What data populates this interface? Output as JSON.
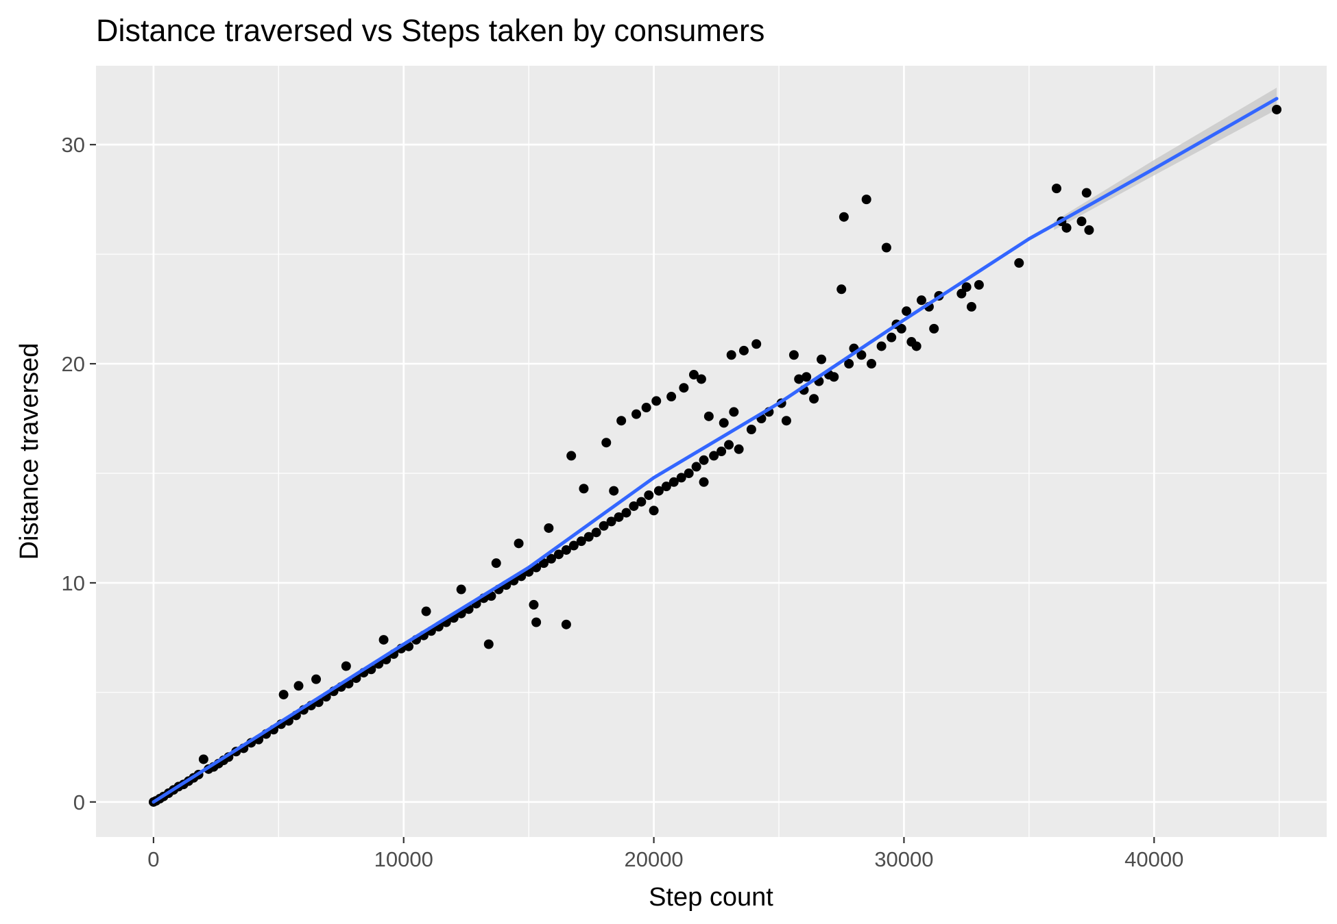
{
  "chart_data": {
    "type": "scatter",
    "title": "Distance traversed vs Steps taken by consumers",
    "xlabel": "Step count",
    "ylabel": "Distance traversed",
    "xlim": [
      -2300,
      46900
    ],
    "ylim": [
      -1.6,
      33.6
    ],
    "x_ticks": [
      0,
      10000,
      20000,
      30000,
      40000
    ],
    "x_tick_labels": [
      "0",
      "10000",
      "20000",
      "30000",
      "40000"
    ],
    "x_minor_ticks": [
      5000,
      15000,
      25000,
      35000,
      45000
    ],
    "y_ticks": [
      0,
      10,
      20,
      30
    ],
    "y_tick_labels": [
      "0",
      "10",
      "20",
      "30"
    ],
    "y_minor_ticks": [
      5,
      15,
      25
    ],
    "grid": true,
    "legend": "none",
    "colors": {
      "panel_background": "#ebebeb",
      "grid": "#ffffff",
      "points": "#000000",
      "trend_line": "#3366ff",
      "confidence_band": "#c8c8c8"
    },
    "series": [
      {
        "type": "scatter",
        "points": [
          [
            0,
            0
          ],
          [
            100,
            0.05
          ],
          [
            250,
            0.15
          ],
          [
            400,
            0.25
          ],
          [
            600,
            0.4
          ],
          [
            800,
            0.55
          ],
          [
            1000,
            0.7
          ],
          [
            1200,
            0.8
          ],
          [
            1400,
            0.95
          ],
          [
            1600,
            1.1
          ],
          [
            1800,
            1.25
          ],
          [
            2000,
            1.95
          ],
          [
            2200,
            1.5
          ],
          [
            2400,
            1.6
          ],
          [
            2600,
            1.75
          ],
          [
            2800,
            1.9
          ],
          [
            3000,
            2.05
          ],
          [
            3300,
            2.3
          ],
          [
            3600,
            2.45
          ],
          [
            3900,
            2.7
          ],
          [
            4200,
            2.85
          ],
          [
            4500,
            3.1
          ],
          [
            4800,
            3.3
          ],
          [
            5100,
            3.55
          ],
          [
            5200,
            4.9
          ],
          [
            5400,
            3.7
          ],
          [
            5700,
            3.95
          ],
          [
            5800,
            5.3
          ],
          [
            6000,
            4.2
          ],
          [
            6300,
            4.4
          ],
          [
            6500,
            5.6
          ],
          [
            6600,
            4.55
          ],
          [
            6900,
            4.8
          ],
          [
            7200,
            5.05
          ],
          [
            7500,
            5.25
          ],
          [
            7700,
            6.2
          ],
          [
            7800,
            5.4
          ],
          [
            8100,
            5.65
          ],
          [
            8400,
            5.9
          ],
          [
            8700,
            6.05
          ],
          [
            9000,
            6.3
          ],
          [
            9200,
            7.4
          ],
          [
            9300,
            6.5
          ],
          [
            9600,
            6.75
          ],
          [
            9900,
            7.0
          ],
          [
            10200,
            7.1
          ],
          [
            10500,
            7.4
          ],
          [
            10800,
            7.6
          ],
          [
            10900,
            8.7
          ],
          [
            11100,
            7.8
          ],
          [
            11400,
            8.0
          ],
          [
            11700,
            8.2
          ],
          [
            12000,
            8.4
          ],
          [
            12300,
            8.6
          ],
          [
            12300,
            9.7
          ],
          [
            12600,
            8.8
          ],
          [
            12900,
            9.05
          ],
          [
            13200,
            9.3
          ],
          [
            13400,
            7.2
          ],
          [
            13500,
            9.4
          ],
          [
            13800,
            9.7
          ],
          [
            13700,
            10.9
          ],
          [
            14100,
            9.9
          ],
          [
            14400,
            10.1
          ],
          [
            14700,
            10.3
          ],
          [
            14600,
            11.8
          ],
          [
            15000,
            10.5
          ],
          [
            15200,
            9.0
          ],
          [
            15300,
            8.2
          ],
          [
            15300,
            10.7
          ],
          [
            15600,
            10.9
          ],
          [
            15800,
            12.5
          ],
          [
            15900,
            11.1
          ],
          [
            16200,
            11.3
          ],
          [
            16500,
            8.1
          ],
          [
            16500,
            11.5
          ],
          [
            16700,
            15.8
          ],
          [
            16800,
            11.7
          ],
          [
            17100,
            11.9
          ],
          [
            17200,
            14.3
          ],
          [
            17400,
            12.1
          ],
          [
            17700,
            12.3
          ],
          [
            18000,
            12.6
          ],
          [
            18100,
            16.4
          ],
          [
            18300,
            12.8
          ],
          [
            18400,
            14.2
          ],
          [
            18600,
            13.0
          ],
          [
            18700,
            17.4
          ],
          [
            18900,
            13.2
          ],
          [
            19200,
            13.5
          ],
          [
            19300,
            17.7
          ],
          [
            19500,
            13.7
          ],
          [
            19700,
            18.0
          ],
          [
            19800,
            14.0
          ],
          [
            20000,
            13.3
          ],
          [
            20100,
            18.3
          ],
          [
            20200,
            14.2
          ],
          [
            20500,
            14.4
          ],
          [
            20700,
            18.5
          ],
          [
            20800,
            14.6
          ],
          [
            21100,
            14.8
          ],
          [
            21200,
            18.9
          ],
          [
            21400,
            15.0
          ],
          [
            21600,
            19.5
          ],
          [
            21700,
            15.3
          ],
          [
            21900,
            19.3
          ],
          [
            22000,
            14.6
          ],
          [
            22000,
            15.6
          ],
          [
            22200,
            17.6
          ],
          [
            22400,
            15.8
          ],
          [
            22700,
            16.0
          ],
          [
            22800,
            17.3
          ],
          [
            23000,
            16.3
          ],
          [
            23100,
            20.4
          ],
          [
            23200,
            17.8
          ],
          [
            23400,
            16.1
          ],
          [
            23600,
            20.6
          ],
          [
            23900,
            17.0
          ],
          [
            24100,
            20.9
          ],
          [
            24300,
            17.5
          ],
          [
            24600,
            17.8
          ],
          [
            25100,
            18.2
          ],
          [
            25300,
            17.4
          ],
          [
            25600,
            20.4
          ],
          [
            25800,
            19.3
          ],
          [
            26000,
            18.8
          ],
          [
            26100,
            19.4
          ],
          [
            26400,
            18.4
          ],
          [
            26600,
            19.2
          ],
          [
            26700,
            20.2
          ],
          [
            27000,
            19.5
          ],
          [
            27200,
            19.4
          ],
          [
            27500,
            23.4
          ],
          [
            27600,
            26.7
          ],
          [
            27800,
            20.0
          ],
          [
            28000,
            20.7
          ],
          [
            28300,
            20.4
          ],
          [
            28500,
            27.5
          ],
          [
            28700,
            20.0
          ],
          [
            29100,
            20.8
          ],
          [
            29300,
            25.3
          ],
          [
            29500,
            21.2
          ],
          [
            29700,
            21.8
          ],
          [
            29900,
            21.6
          ],
          [
            30100,
            22.4
          ],
          [
            30300,
            21.0
          ],
          [
            30500,
            20.8
          ],
          [
            30700,
            22.9
          ],
          [
            31000,
            22.6
          ],
          [
            31200,
            21.6
          ],
          [
            31400,
            23.1
          ],
          [
            32300,
            23.2
          ],
          [
            32500,
            23.5
          ],
          [
            32700,
            22.6
          ],
          [
            33000,
            23.6
          ],
          [
            34600,
            24.6
          ],
          [
            36100,
            28.0
          ],
          [
            36300,
            26.5
          ],
          [
            36500,
            26.2
          ],
          [
            37100,
            26.5
          ],
          [
            37300,
            27.8
          ],
          [
            37400,
            26.1
          ],
          [
            44900,
            31.6
          ]
        ]
      },
      {
        "type": "line",
        "name": "",
        "points": [
          [
            0,
            0
          ],
          [
            5000,
            3.6
          ],
          [
            10000,
            7.2
          ],
          [
            15000,
            10.7
          ],
          [
            20000,
            14.8
          ],
          [
            25000,
            18.2
          ],
          [
            30000,
            22.0
          ],
          [
            35000,
            25.7
          ],
          [
            40000,
            28.9
          ],
          [
            44900,
            32.1
          ]
        ]
      },
      {
        "type": "band",
        "upper": [
          [
            36000,
            26.5
          ],
          [
            40000,
            29.3
          ],
          [
            44900,
            32.6
          ]
        ],
        "lower": [
          [
            36000,
            26.1
          ],
          [
            40000,
            28.6
          ],
          [
            44900,
            31.6
          ]
        ]
      }
    ]
  }
}
